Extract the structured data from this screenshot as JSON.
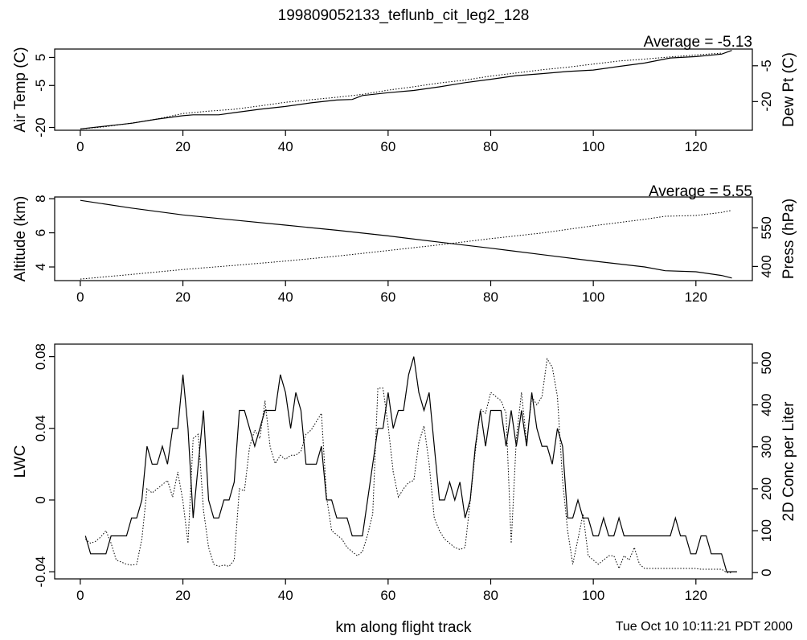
{
  "title": "199809052133_teflunb_cit_leg2_128",
  "xlabel": "km along flight track",
  "timestamp": "Tue Oct 10 10:11:21 PDT 2000",
  "chart_data": [
    {
      "type": "line",
      "id": "temp",
      "average_text": "Average = -5.13",
      "xlim": [
        -5,
        131
      ],
      "xticks": [
        0,
        20,
        40,
        60,
        80,
        100,
        120
      ],
      "left_axis": {
        "label": "Air Temp (C)",
        "ylim": [
          -21,
          8
        ],
        "ticks": [
          -20,
          -5,
          5
        ]
      },
      "right_axis": {
        "label": "Dew Pt (C)",
        "ylim": [
          -32,
          2
        ],
        "ticks": [
          -20,
          -5
        ]
      },
      "series": [
        {
          "axis": "left",
          "style": "solid",
          "x": [
            0,
            5,
            10,
            15,
            20,
            22,
            27,
            30,
            35,
            40,
            45,
            50,
            53,
            55,
            60,
            65,
            70,
            75,
            80,
            85,
            90,
            95,
            100,
            105,
            110,
            115,
            120,
            125,
            127
          ],
          "y": [
            -20.5,
            -19.5,
            -18.5,
            -17,
            -15.8,
            -15.5,
            -15.5,
            -14.7,
            -13.5,
            -12.5,
            -11.2,
            -10.2,
            -10,
            -8.6,
            -7.6,
            -6.8,
            -5.5,
            -4,
            -2.8,
            -1.5,
            -0.8,
            0,
            0.5,
            1.8,
            3,
            4.8,
            5.3,
            6.2,
            7.5
          ]
        },
        {
          "axis": "right",
          "style": "dotted",
          "x": [
            0,
            5,
            10,
            15,
            20,
            25,
            30,
            35,
            40,
            45,
            50,
            55,
            60,
            65,
            70,
            75,
            80,
            85,
            90,
            95,
            100,
            105,
            110,
            115,
            120,
            125
          ],
          "y": [
            -31.5,
            -30.5,
            -29,
            -27.3,
            -25,
            -24,
            -23.2,
            -21.8,
            -20.3,
            -19.2,
            -18.2,
            -17,
            -15.2,
            -13.8,
            -12.2,
            -11,
            -9.3,
            -8,
            -6.7,
            -5.6,
            -4.3,
            -3,
            -2.2,
            -1.3,
            -0.5,
            0.3
          ]
        }
      ]
    },
    {
      "type": "line",
      "id": "alt",
      "average_text": "Average = 5.55",
      "xlim": [
        -5,
        131
      ],
      "xticks": [
        0,
        20,
        40,
        60,
        80,
        100,
        120
      ],
      "left_axis": {
        "label": "Altitude (km)",
        "ylim": [
          3.2,
          8.1
        ],
        "ticks": [
          4,
          6,
          8
        ]
      },
      "right_axis": {
        "label": "Press (hPa)",
        "ylim": [
          345,
          670
        ],
        "ticks": [
          400,
          550
        ]
      },
      "series": [
        {
          "axis": "left",
          "style": "solid",
          "x": [
            0,
            10,
            20,
            30,
            40,
            50,
            60,
            70,
            80,
            90,
            100,
            110,
            114,
            120,
            125,
            127
          ],
          "y": [
            7.9,
            7.45,
            7.05,
            6.75,
            6.45,
            6.15,
            5.82,
            5.45,
            5.1,
            4.72,
            4.35,
            4.0,
            3.78,
            3.72,
            3.5,
            3.35
          ]
        },
        {
          "axis": "right",
          "style": "dotted",
          "x": [
            0,
            10,
            20,
            30,
            40,
            50,
            60,
            70,
            80,
            90,
            100,
            110,
            114,
            120,
            125,
            127
          ],
          "y": [
            351,
            369,
            388,
            404,
            421,
            440,
            462,
            484,
            508,
            530,
            558,
            583,
            595,
            598,
            610,
            618
          ]
        }
      ]
    },
    {
      "type": "line",
      "id": "lwc",
      "xlim": [
        -5,
        131
      ],
      "xticks": [
        0,
        20,
        40,
        60,
        80,
        100,
        120
      ],
      "left_axis": {
        "label": "LWC",
        "ylim": [
          -0.044,
          0.087
        ],
        "ticks": [
          -0.04,
          0.0,
          0.04,
          0.08
        ]
      },
      "right_axis": {
        "label": "2D Conc per Liter",
        "ylim": [
          -15,
          545
        ],
        "ticks": [
          0,
          100,
          200,
          300,
          400,
          500
        ]
      },
      "series": [
        {
          "axis": "left",
          "style": "solid",
          "x": [
            1,
            2,
            3,
            4,
            5,
            6,
            7,
            8,
            9,
            10,
            11,
            12,
            13,
            14,
            15,
            16,
            17,
            18,
            19,
            20,
            21,
            22,
            23,
            24,
            25,
            26,
            27,
            28,
            29,
            30,
            31,
            32,
            33,
            34,
            35,
            36,
            37,
            38,
            39,
            40,
            41,
            42,
            43,
            44,
            45,
            46,
            47,
            48,
            49,
            50,
            51,
            52,
            53,
            54,
            55,
            56,
            57,
            58,
            59,
            60,
            61,
            62,
            63,
            64,
            65,
            66,
            67,
            68,
            69,
            70,
            71,
            72,
            73,
            74,
            75,
            76,
            77,
            78,
            79,
            80,
            81,
            82,
            83,
            84,
            85,
            86,
            87,
            88,
            89,
            90,
            91,
            92,
            93,
            94,
            95,
            96,
            97,
            98,
            99,
            100,
            101,
            102,
            103,
            104,
            105,
            106,
            107,
            108,
            109,
            110,
            111,
            112,
            113,
            114,
            115,
            116,
            117,
            118,
            119,
            120,
            121,
            122,
            123,
            124,
            125,
            126,
            127,
            128
          ],
          "y": [
            -0.02,
            -0.03,
            -0.03,
            -0.03,
            -0.03,
            -0.02,
            -0.02,
            -0.02,
            -0.02,
            -0.01,
            -0.01,
            0.0,
            0.03,
            0.02,
            0.02,
            0.03,
            0.02,
            0.04,
            0.04,
            0.07,
            0.04,
            -0.01,
            0.02,
            0.05,
            0.0,
            -0.01,
            -0.01,
            0.0,
            0.0,
            0.01,
            0.05,
            0.05,
            0.04,
            0.03,
            0.04,
            0.05,
            0.05,
            0.05,
            0.07,
            0.06,
            0.04,
            0.06,
            0.05,
            0.02,
            0.02,
            0.02,
            0.03,
            0.0,
            0.0,
            -0.01,
            -0.01,
            -0.01,
            -0.02,
            -0.02,
            -0.02,
            0.0,
            0.02,
            0.04,
            0.04,
            0.06,
            0.04,
            0.05,
            0.05,
            0.07,
            0.08,
            0.06,
            0.05,
            0.06,
            0.03,
            0.0,
            0.0,
            0.01,
            0.0,
            0.01,
            -0.01,
            0.0,
            0.03,
            0.05,
            0.03,
            0.05,
            0.05,
            0.05,
            0.03,
            0.05,
            0.03,
            0.05,
            0.03,
            0.06,
            0.04,
            0.03,
            0.03,
            0.02,
            0.04,
            0.03,
            -0.01,
            -0.01,
            0.0,
            -0.01,
            -0.01,
            -0.02,
            -0.02,
            -0.01,
            -0.02,
            -0.02,
            -0.01,
            -0.02,
            -0.02,
            -0.02,
            -0.02,
            -0.02,
            -0.02,
            -0.02,
            -0.02,
            -0.02,
            -0.02,
            -0.01,
            -0.02,
            -0.02,
            -0.03,
            -0.03,
            -0.02,
            -0.02,
            -0.03,
            -0.03,
            -0.03,
            -0.04,
            -0.04,
            -0.04
          ]
        },
        {
          "axis": "right",
          "style": "dotted",
          "x": [
            1,
            2,
            3,
            4,
            5,
            6,
            7,
            8,
            9,
            10,
            11,
            12,
            13,
            14,
            15,
            16,
            17,
            18,
            19,
            20,
            21,
            22,
            23,
            24,
            25,
            26,
            27,
            28,
            29,
            30,
            31,
            32,
            33,
            34,
            35,
            36,
            37,
            38,
            39,
            40,
            41,
            42,
            43,
            44,
            45,
            46,
            47,
            48,
            49,
            50,
            51,
            52,
            53,
            54,
            55,
            56,
            57,
            58,
            59,
            60,
            61,
            62,
            63,
            64,
            65,
            66,
            67,
            68,
            69,
            70,
            71,
            72,
            73,
            74,
            75,
            76,
            77,
            78,
            79,
            80,
            81,
            82,
            83,
            84,
            85,
            86,
            87,
            88,
            89,
            90,
            91,
            92,
            93,
            94,
            95,
            96,
            97,
            98,
            99,
            100,
            101,
            102,
            103,
            104,
            105,
            106,
            107,
            108,
            109,
            110,
            111,
            112,
            113,
            114,
            115,
            116,
            117,
            118,
            119,
            120,
            121,
            122,
            123,
            124,
            125,
            126,
            127
          ],
          "y": [
            80,
            70,
            75,
            85,
            100,
            70,
            30,
            25,
            20,
            18,
            20,
            80,
            200,
            190,
            200,
            210,
            220,
            180,
            240,
            170,
            70,
            320,
            330,
            150,
            60,
            20,
            15,
            18,
            15,
            30,
            200,
            195,
            300,
            340,
            320,
            410,
            300,
            260,
            280,
            270,
            280,
            280,
            290,
            330,
            340,
            360,
            380,
            180,
            100,
            90,
            80,
            60,
            50,
            40,
            50,
            90,
            140,
            440,
            440,
            350,
            240,
            180,
            200,
            215,
            220,
            310,
            350,
            260,
            130,
            100,
            80,
            70,
            60,
            55,
            60,
            170,
            290,
            390,
            380,
            430,
            420,
            410,
            380,
            70,
            320,
            430,
            310,
            420,
            400,
            420,
            510,
            490,
            420,
            220,
            100,
            20,
            80,
            140,
            40,
            30,
            20,
            30,
            40,
            40,
            10,
            40,
            30,
            60,
            20,
            10,
            10,
            10,
            10,
            10,
            10,
            10,
            10,
            10,
            10,
            10,
            8,
            8,
            8,
            8,
            8,
            0,
            0
          ]
        }
      ]
    }
  ]
}
